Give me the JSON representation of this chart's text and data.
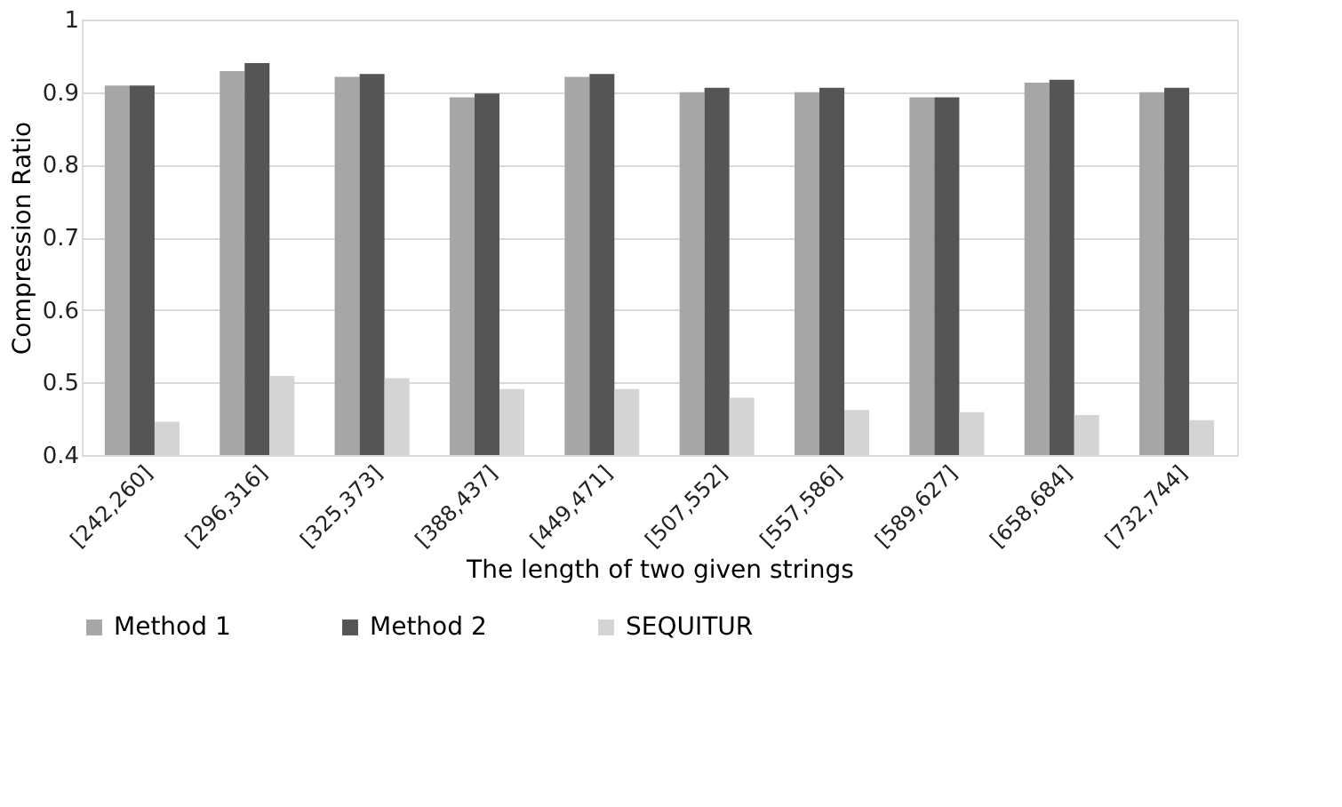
{
  "chart_data": {
    "type": "bar",
    "xlabel": "The length of two given strings",
    "ylabel": "Compression Ratio",
    "categories": [
      "[242,260]",
      "[296,316]",
      "[325,373]",
      "[388,437]",
      "[449,471]",
      "[507,552]",
      "[557,586]",
      "[589,627]",
      "[658,684]",
      "[732,744]"
    ],
    "series": [
      {
        "name": "Method 1",
        "color": "#a6a6a6",
        "values": [
          0.909,
          0.929,
          0.921,
          0.893,
          0.921,
          0.9,
          0.9,
          0.893,
          0.913,
          0.9
        ]
      },
      {
        "name": "Method 2",
        "color": "#555555",
        "values": [
          0.909,
          0.94,
          0.925,
          0.898,
          0.925,
          0.906,
          0.906,
          0.893,
          0.917,
          0.906
        ]
      },
      {
        "name": "SEQUITUR",
        "color": "#d4d4d4",
        "values": [
          0.446,
          0.509,
          0.506,
          0.491,
          0.491,
          0.479,
          0.462,
          0.459,
          0.455,
          0.448
        ]
      }
    ],
    "ylim": [
      0.4,
      1.0
    ],
    "yticks": [
      0.4,
      0.5,
      0.6,
      0.7,
      0.8,
      0.9,
      {
        "value": 1.0,
        "label": "1"
      }
    ],
    "grid": "y",
    "legend": "bottom"
  }
}
